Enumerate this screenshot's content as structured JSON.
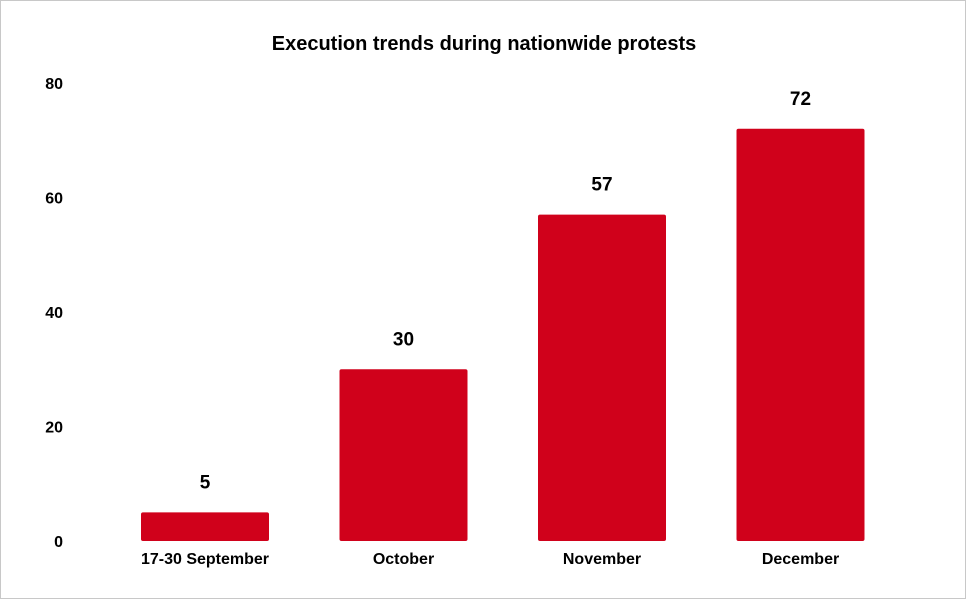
{
  "chart_data": {
    "type": "bar",
    "title": "Execution trends during nationwide protests",
    "categories": [
      "17-30 September",
      "October",
      "November",
      "December"
    ],
    "values": [
      5,
      30,
      57,
      72
    ],
    "data_labels": [
      "5",
      "30",
      "57",
      "72"
    ],
    "y_ticks": [
      "0",
      "20",
      "40",
      "60",
      "80"
    ],
    "xlabel": "",
    "ylabel": "",
    "ylim": [
      0,
      80
    ],
    "grid": false,
    "legend": "none",
    "bar_color": "#d0011b"
  }
}
